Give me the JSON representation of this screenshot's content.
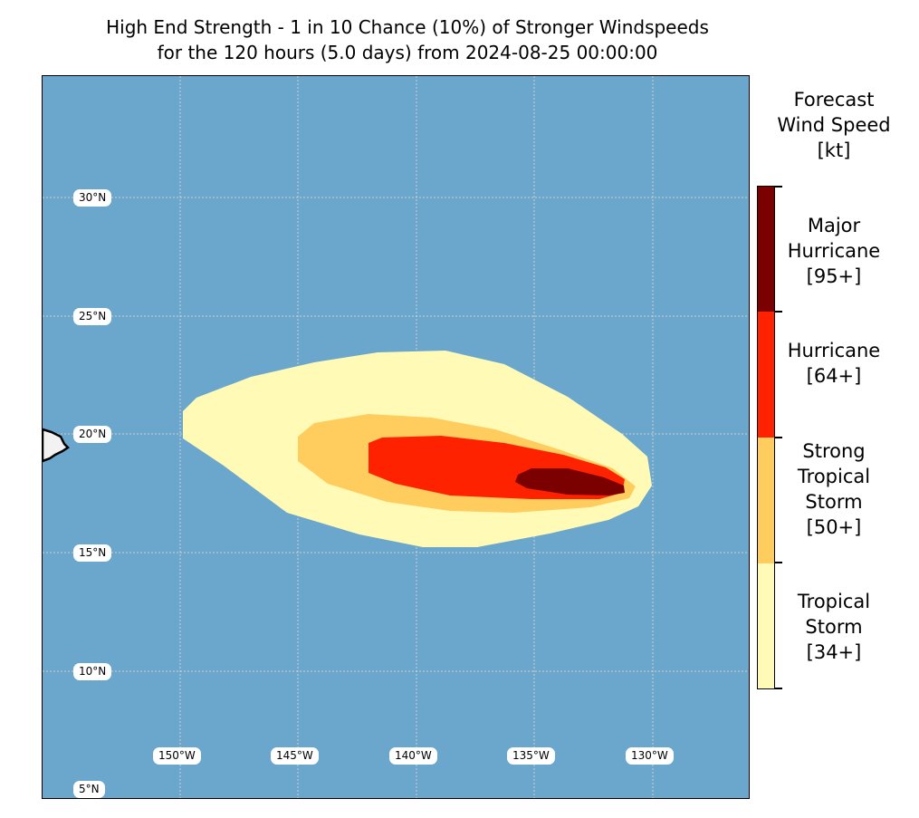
{
  "title": {
    "line1": "High End Strength - 1 in 10 Chance (10%) of Stronger Windspeeds",
    "line2": "for the 120 hours (5.0 days) from 2024-08-25 00:00:00"
  },
  "map": {
    "ocean_color": "#6ba6cc",
    "land_color": "#f2f2f2",
    "lat_labels": [
      "30°N",
      "25°N",
      "20°N",
      "15°N",
      "10°N",
      "5°N"
    ],
    "lon_labels": [
      "150°W",
      "145°W",
      "140°W",
      "135°W",
      "130°W"
    ]
  },
  "legend": {
    "title": [
      "Forecast",
      "Wind Speed",
      "[kt]"
    ],
    "categories": [
      {
        "label": [
          "Major",
          "Hurricane",
          "[95+]"
        ],
        "color": "#7b0000"
      },
      {
        "label": [
          "Hurricane",
          "[64+]"
        ],
        "color": "#ff2200"
      },
      {
        "label": [
          "Strong",
          "Tropical",
          "Storm",
          "[50+]"
        ],
        "color": "#ffcc5e"
      },
      {
        "label": [
          "Tropical",
          "Storm",
          "[34+]"
        ],
        "color": "#fffbb7"
      }
    ]
  }
}
